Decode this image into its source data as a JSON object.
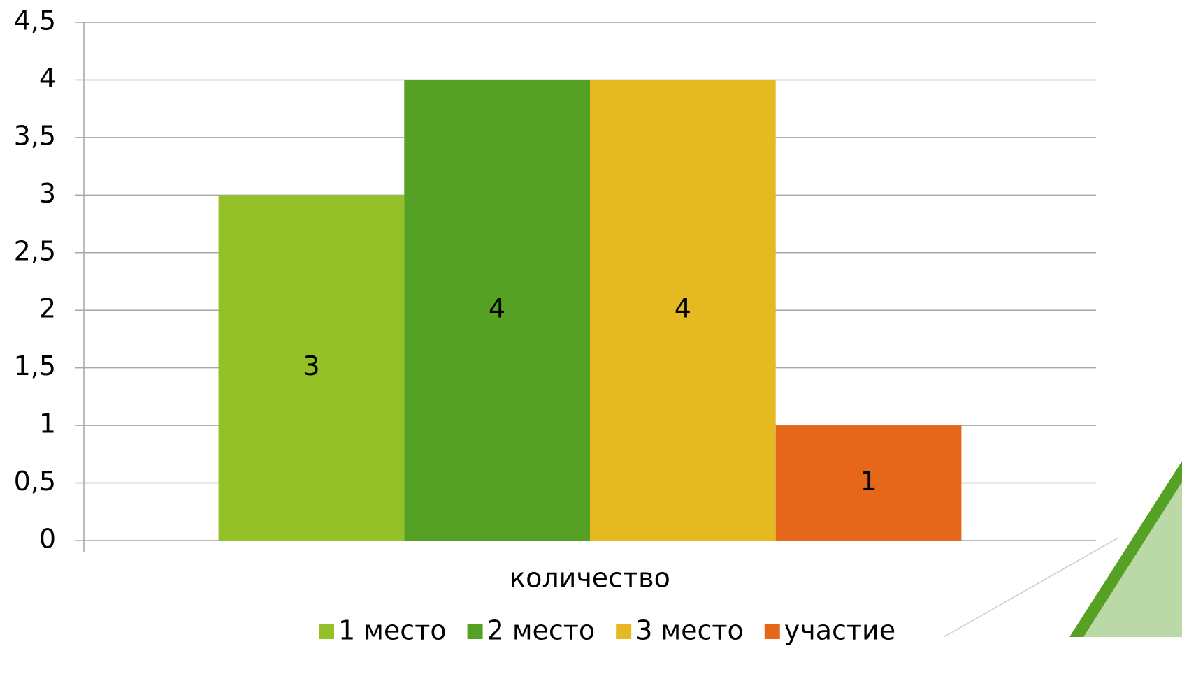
{
  "chart_data": {
    "type": "bar",
    "categories": [
      "количество"
    ],
    "series": [
      {
        "name": "1 место",
        "color": "#93c127",
        "values": [
          3
        ]
      },
      {
        "name": "2 место",
        "color": "#55a123",
        "values": [
          4
        ]
      },
      {
        "name": "3 место",
        "color": "#e4b921",
        "values": [
          4
        ]
      },
      {
        "name": "участие",
        "color": "#e6671a",
        "values": [
          1
        ]
      }
    ],
    "ylim": [
      0,
      4.5
    ],
    "yticks": [
      0,
      {
        "value": 0.5,
        "label": "0,5"
      },
      1,
      {
        "value": 1.5,
        "label": "1,5"
      },
      2,
      {
        "value": 2.5,
        "label": "2,5"
      },
      3,
      {
        "value": 3.5,
        "label": "3,5"
      },
      4,
      {
        "value": 4.5,
        "label": "4,5"
      }
    ],
    "grid": true,
    "legend": "bottom"
  }
}
